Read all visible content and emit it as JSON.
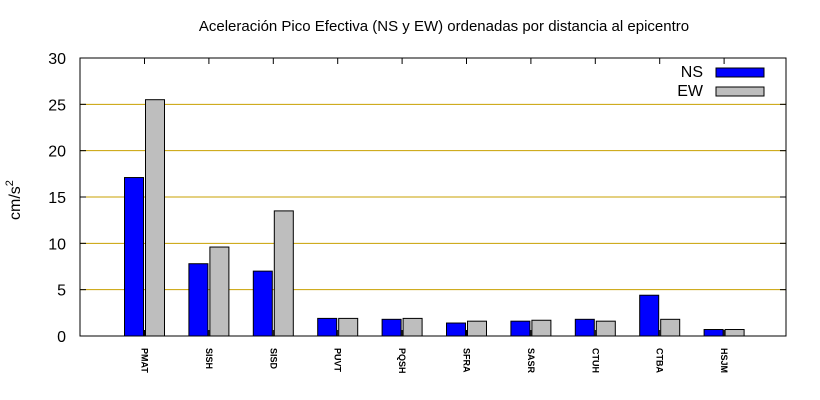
{
  "chart_data": {
    "type": "bar",
    "title": "Aceleración Pico Efectiva (NS y EW) ordenadas por distancia al epicentro",
    "xlabel": "",
    "ylabel": "cm/s",
    "ylabel_sup": "2",
    "ylim": [
      0,
      30
    ],
    "yticks": [
      0,
      5,
      10,
      15,
      20,
      25,
      30
    ],
    "categories": [
      "PMAT",
      "SISH",
      "SISD",
      "PUVT",
      "PQSH",
      "SFRA",
      "SASR",
      "CTUH",
      "CTBA",
      "HSJM"
    ],
    "series": [
      {
        "name": "NS",
        "color": "#0000ff",
        "values": [
          17.1,
          7.8,
          7.0,
          1.9,
          1.8,
          1.4,
          1.6,
          1.8,
          4.4,
          0.7
        ]
      },
      {
        "name": "EW",
        "color": "#bebebe",
        "values": [
          25.5,
          9.6,
          13.5,
          1.9,
          1.9,
          1.6,
          1.7,
          1.6,
          1.8,
          0.7
        ]
      }
    ],
    "grid": true,
    "grid_color": "#c8a000",
    "legend_position": "top-right"
  }
}
